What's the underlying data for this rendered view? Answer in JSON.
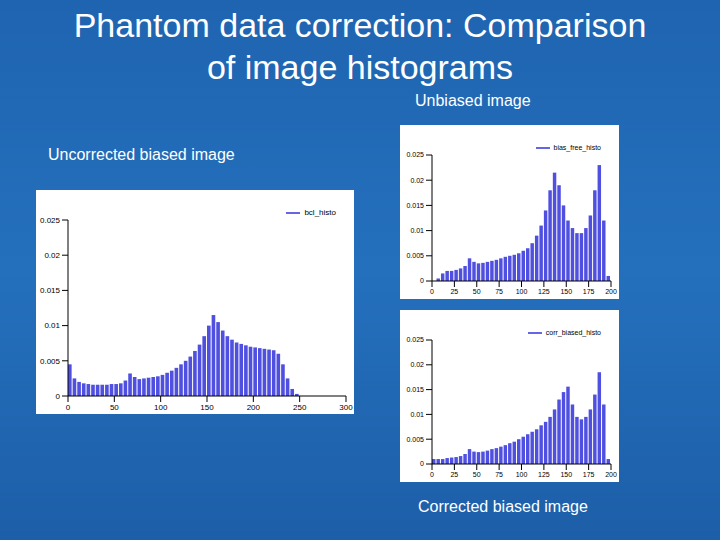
{
  "title": "Phantom data correction: Comparison of image histograms",
  "chart_data": [
    {
      "type": "histogram",
      "title": "Unbiased image",
      "bins": [
        0,
        5,
        10,
        15,
        20,
        25,
        30,
        35,
        40,
        45,
        50,
        55,
        60,
        65,
        70,
        75,
        80,
        85,
        90,
        95,
        100,
        105,
        110,
        115,
        120,
        125,
        130,
        135,
        140,
        145,
        150,
        155,
        160,
        165,
        170,
        175,
        180,
        185,
        190,
        195,
        200
      ],
      "series": [
        {
          "name": "bias_free_histo",
          "color": "#5050e0",
          "values": [
            0,
            0.0005,
            0.0015,
            0.002,
            0.002,
            0.0022,
            0.0025,
            0.003,
            0.0045,
            0.0038,
            0.0035,
            0.0036,
            0.0038,
            0.004,
            0.0042,
            0.0045,
            0.0048,
            0.005,
            0.0052,
            0.0055,
            0.006,
            0.0065,
            0.0075,
            0.009,
            0.011,
            0.014,
            0.018,
            0.0215,
            0.019,
            0.015,
            0.012,
            0.0105,
            0.0095,
            0.0095,
            0.0105,
            0.013,
            0.018,
            0.023,
            0.012,
            0.001
          ]
        }
      ],
      "xlim": [
        0,
        200
      ],
      "xticks": [
        0,
        25,
        50,
        75,
        100,
        125,
        150,
        175,
        200
      ],
      "ylim": [
        0,
        0.025
      ],
      "yticks": [
        0,
        0.005,
        0.01,
        0.015,
        0.02,
        0.025
      ],
      "legend": "upper right"
    },
    {
      "type": "histogram",
      "title": "Uncorrected biased image",
      "bins": [
        0,
        5,
        10,
        15,
        20,
        25,
        30,
        35,
        40,
        45,
        50,
        55,
        60,
        65,
        70,
        75,
        80,
        85,
        90,
        95,
        100,
        105,
        110,
        115,
        120,
        125,
        130,
        135,
        140,
        145,
        150,
        155,
        160,
        165,
        170,
        175,
        180,
        185,
        190,
        195,
        200,
        205,
        210,
        215,
        220,
        225,
        230,
        235,
        240,
        245,
        250,
        255,
        260,
        265,
        270,
        275,
        280,
        285,
        290,
        295,
        300
      ],
      "series": [
        {
          "name": "bcl_histo",
          "color": "#5050e0",
          "values": [
            0.0045,
            0.0025,
            0.002,
            0.0018,
            0.0017,
            0.0016,
            0.0016,
            0.0016,
            0.0016,
            0.0017,
            0.0017,
            0.0018,
            0.0022,
            0.0032,
            0.0027,
            0.0024,
            0.0025,
            0.0026,
            0.0027,
            0.0028,
            0.003,
            0.0033,
            0.0036,
            0.004,
            0.0045,
            0.005,
            0.0056,
            0.0064,
            0.0073,
            0.0085,
            0.01,
            0.0115,
            0.0105,
            0.0093,
            0.0085,
            0.008,
            0.0076,
            0.0074,
            0.0072,
            0.007,
            0.0069,
            0.0068,
            0.0067,
            0.0066,
            0.0065,
            0.006,
            0.0045,
            0.0025,
            0.001,
            0.0003,
            0,
            0,
            0,
            0,
            0,
            0,
            0,
            0,
            0,
            0
          ]
        }
      ],
      "xlim": [
        0,
        300
      ],
      "xticks": [
        0,
        50,
        100,
        150,
        200,
        250,
        300
      ],
      "ylim": [
        0,
        0.025
      ],
      "yticks": [
        0,
        0.005,
        0.01,
        0.015,
        0.02,
        0.025
      ],
      "legend": "upper right"
    },
    {
      "type": "histogram",
      "title": "Corrected biased image",
      "bins": [
        0,
        5,
        10,
        15,
        20,
        25,
        30,
        35,
        40,
        45,
        50,
        55,
        60,
        65,
        70,
        75,
        80,
        85,
        90,
        95,
        100,
        105,
        110,
        115,
        120,
        125,
        130,
        135,
        140,
        145,
        150,
        155,
        160,
        165,
        170,
        175,
        180,
        185,
        190,
        195,
        200
      ],
      "series": [
        {
          "name": "corr_biased_histo",
          "color": "#5050e0",
          "values": [
            0.001,
            0.001,
            0.001,
            0.0012,
            0.0013,
            0.0014,
            0.0016,
            0.002,
            0.003,
            0.0025,
            0.0024,
            0.0025,
            0.0027,
            0.003,
            0.0032,
            0.0035,
            0.0038,
            0.0042,
            0.0045,
            0.005,
            0.0055,
            0.006,
            0.0065,
            0.007,
            0.0078,
            0.0085,
            0.0095,
            0.011,
            0.013,
            0.0145,
            0.0156,
            0.012,
            0.0095,
            0.009,
            0.0095,
            0.011,
            0.014,
            0.0185,
            0.012,
            0.001
          ]
        }
      ],
      "xlim": [
        0,
        200
      ],
      "xticks": [
        0,
        25,
        50,
        75,
        100,
        125,
        150,
        175,
        200
      ],
      "ylim": [
        0,
        0.025
      ],
      "yticks": [
        0,
        0.005,
        0.01,
        0.015,
        0.02,
        0.025
      ],
      "legend": "upper right"
    }
  ]
}
